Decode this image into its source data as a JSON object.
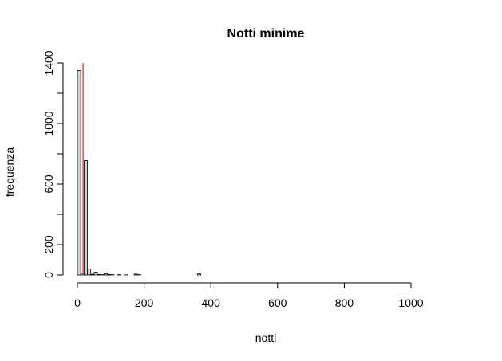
{
  "chart_data": {
    "type": "bar",
    "title": "Notti minime",
    "xlabel": "notti",
    "ylabel": "frequenza",
    "xlim": [
      0,
      1125
    ],
    "ylim": [
      0,
      1400
    ],
    "x_ticks": [
      0,
      200,
      400,
      600,
      800,
      1000
    ],
    "y_ticks": [
      0,
      200,
      600,
      1000,
      1400
    ],
    "bin_width": 10,
    "bins_from": 0,
    "bins_to": 1130,
    "grid": false,
    "legend": "none",
    "bars": [
      {
        "x0": 0,
        "x1": 10,
        "value": 1350
      },
      {
        "x0": 10,
        "x1": 20,
        "value": 10
      },
      {
        "x0": 20,
        "x1": 30,
        "value": 755
      },
      {
        "x0": 30,
        "x1": 40,
        "value": 40
      },
      {
        "x0": 40,
        "x1": 50,
        "value": 4
      },
      {
        "x0": 50,
        "x1": 60,
        "value": 18
      },
      {
        "x0": 60,
        "x1": 70,
        "value": 3
      },
      {
        "x0": 70,
        "x1": 80,
        "value": 2
      },
      {
        "x0": 80,
        "x1": 90,
        "value": 9
      },
      {
        "x0": 90,
        "x1": 100,
        "value": 3
      },
      {
        "x0": 100,
        "x1": 110,
        "value": 2
      },
      {
        "x0": 120,
        "x1": 130,
        "value": 2
      },
      {
        "x0": 140,
        "x1": 150,
        "value": 1
      },
      {
        "x0": 170,
        "x1": 180,
        "value": 6
      },
      {
        "x0": 180,
        "x1": 190,
        "value": 2
      },
      {
        "x0": 360,
        "x1": 370,
        "value": 7
      }
    ],
    "reference_line": {
      "x": 17,
      "color": "#dd3333"
    },
    "bar_fill": "#d3d3d3",
    "bar_stroke": "#000000"
  }
}
